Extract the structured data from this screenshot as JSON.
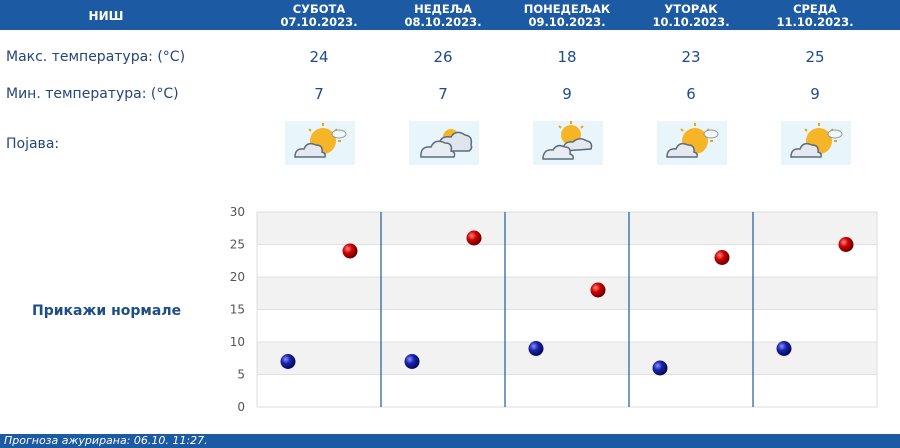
{
  "header": {
    "city": "НИШ",
    "days": [
      {
        "name": "СУБОТА",
        "date": "07.10.2023."
      },
      {
        "name": "НЕДЕЉА",
        "date": "08.10.2023."
      },
      {
        "name": "ПОНЕДЕЉАК",
        "date": "09.10.2023."
      },
      {
        "name": "УТОРАК",
        "date": "10.10.2023."
      },
      {
        "name": "СРЕДА",
        "date": "11.10.2023."
      }
    ]
  },
  "rows": {
    "max_label": "Макс. температура: (°C)",
    "min_label": "Мин. температура: (°C)",
    "phenomenon_label": "Појава:",
    "max": [
      "24",
      "26",
      "18",
      "23",
      "25"
    ],
    "min": [
      "7",
      "7",
      "9",
      "6",
      "9"
    ],
    "icons": [
      "partly-sunny-icon",
      "cloudy-icon",
      "cloudy-sun-icon",
      "partly-sunny-icon",
      "partly-sunny-icon"
    ]
  },
  "show_normals_label": "Прикажи нормале",
  "chart_data": {
    "type": "scatter",
    "categories": [
      "СУБОТА",
      "НЕДЕЉА",
      "ПОНЕДЕЉАК",
      "УТОРАК",
      "СРЕДА"
    ],
    "ylim": [
      0,
      30
    ],
    "yticks": [
      0,
      5,
      10,
      15,
      20,
      25,
      30
    ],
    "grid": true,
    "series": [
      {
        "name": "",
        "color": "#cc0000",
        "values": [
          24,
          26,
          18,
          23,
          25
        ]
      },
      {
        "name": "",
        "color": "#1a23b0",
        "values": [
          7,
          7,
          9,
          6,
          9
        ]
      }
    ]
  },
  "footer": {
    "text": "Прогноза ажурирана:  06.10. 11:27."
  }
}
